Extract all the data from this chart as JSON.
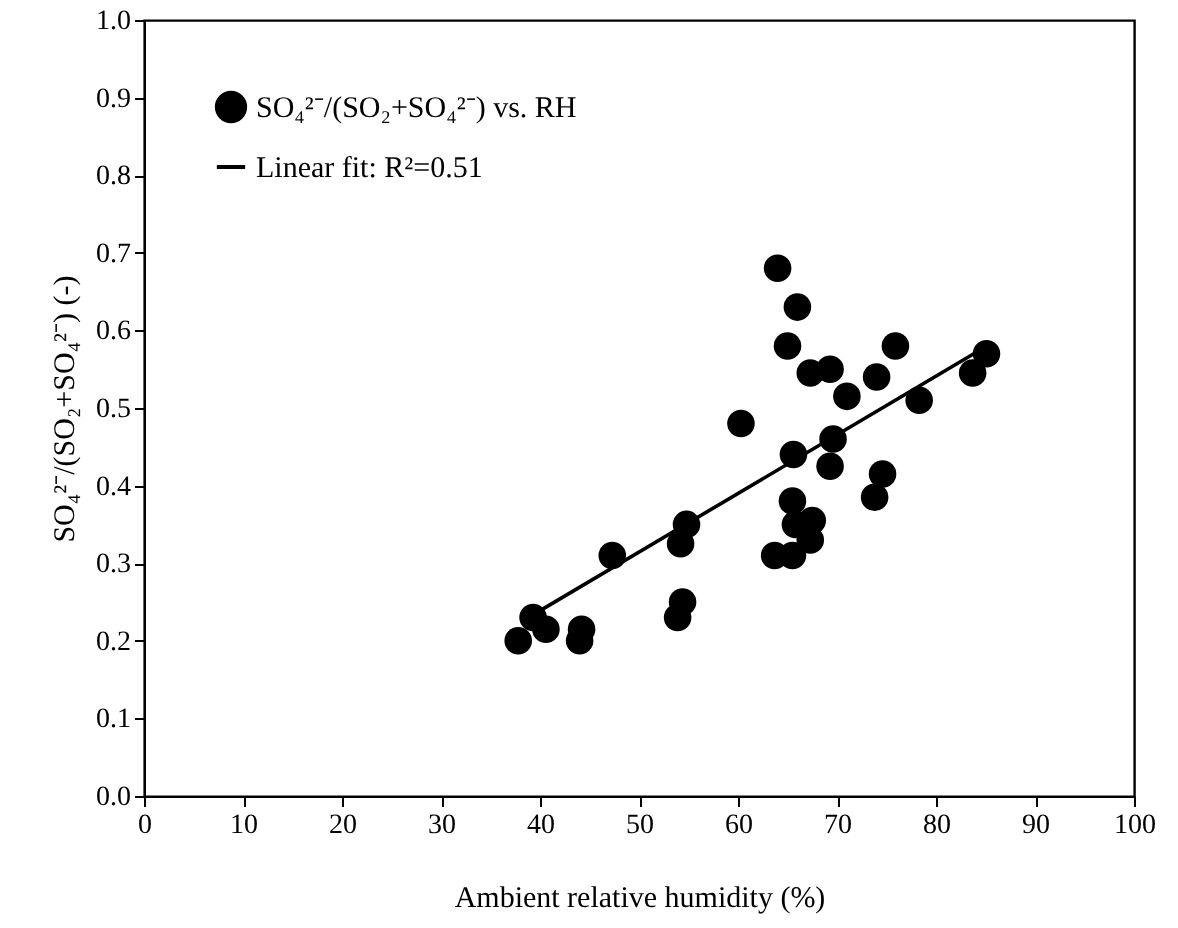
{
  "chart_data": {
    "type": "scatter",
    "xlabel": "Ambient relative humidity (%)",
    "ylabel": "SO₄²⁻/(SO₂+SO₄²⁻) (-)",
    "xlim": [
      0,
      100
    ],
    "xticks": [
      0,
      10,
      20,
      30,
      40,
      50,
      60,
      70,
      80,
      90,
      100
    ],
    "ylim": [
      0,
      1
    ],
    "yticks": [
      {
        "value": 0,
        "label": "0.0"
      },
      0.1,
      0.2,
      0.3,
      0.4,
      0.5,
      0.6,
      0.7,
      0.8,
      0.9,
      {
        "value": 1,
        "label": "1.0"
      }
    ],
    "grid": false,
    "legend": "top left",
    "marker": "circle",
    "series": [
      {
        "name": "SO₄²⁻/(SO₂+SO₄²⁻) vs. RH",
        "color": "#000000",
        "x": [
          37.8,
          39.3,
          40.6,
          44,
          44.2,
          47.3,
          53.9,
          54.4,
          54.2,
          54.8,
          60.3,
          63.7,
          64,
          65,
          66,
          65.6,
          65.5,
          65.5,
          65.8,
          67.3,
          67.5,
          67.3,
          69.3,
          69.6,
          69.3,
          71,
          74,
          73.8,
          74.6,
          75.9,
          78.3,
          83.7,
          85.1
        ],
        "values": [
          0.2,
          0.23,
          0.215,
          0.2,
          0.215,
          0.31,
          0.23,
          0.25,
          0.325,
          0.35,
          0.48,
          0.31,
          0.68,
          0.58,
          0.63,
          0.44,
          0.38,
          0.31,
          0.35,
          0.33,
          0.355,
          0.545,
          0.55,
          0.46,
          0.425,
          0.515,
          0.54,
          0.385,
          0.415,
          0.58,
          0.51,
          0.545,
          0.57
        ]
      },
      {
        "name": "Linear fit: R²=0.51",
        "type": "line",
        "color": "#000000",
        "line_style": "solid",
        "marker": "none",
        "x": [
          39.5,
          84.5
        ],
        "values": [
          0.235,
          0.575
        ]
      }
    ]
  }
}
